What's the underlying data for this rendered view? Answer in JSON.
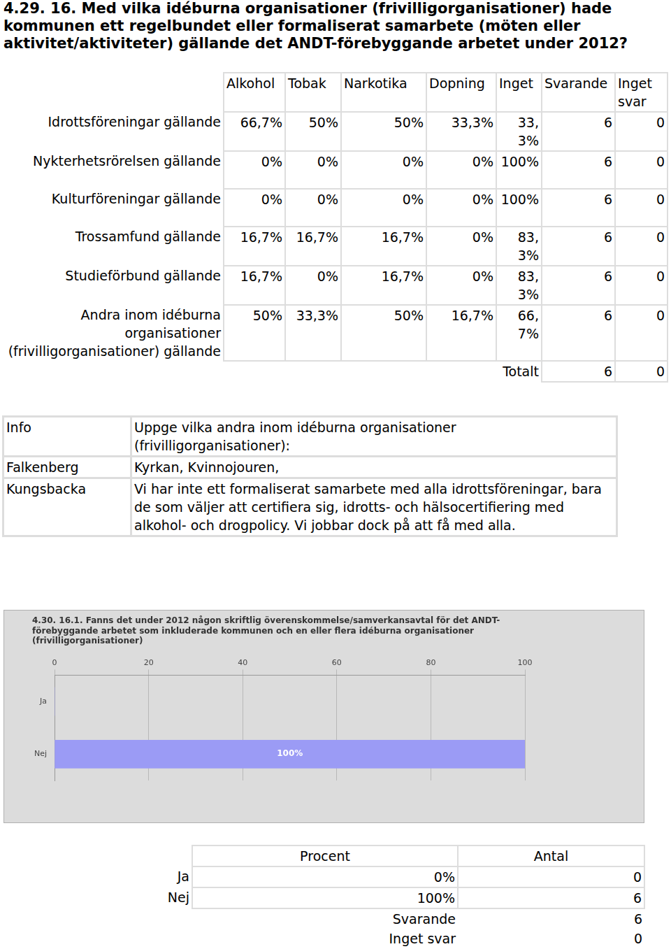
{
  "heading": "4.29. 16. Med vilka idéburna organisationer (frivilligorganisationer) hade kommunen ett regelbundet eller formaliserat samarbete (möten eller aktivitet/aktiviteter) gällande det ANDT-förebyggande arbetet under 2012?",
  "table1": {
    "columns": [
      "Alkohol",
      "Tobak",
      "Narkotika",
      "Dopning",
      "Inget",
      "Svarande",
      "Inget svar"
    ],
    "rows": [
      [
        "Idrottsföreningar gällande",
        "66,7%",
        "50%",
        "50%",
        "33,3%",
        "33,3%",
        "6",
        "0"
      ],
      [
        "Nykterhetsrörelsen gällande",
        "0%",
        "0%",
        "0%",
        "0%",
        "100%",
        "6",
        "0"
      ],
      [
        "Kulturföreningar gällande",
        "0%",
        "0%",
        "0%",
        "0%",
        "100%",
        "6",
        "0"
      ],
      [
        "Trossamfund gällande",
        "16,7%",
        "16,7%",
        "16,7%",
        "0%",
        "83,3%",
        "6",
        "0"
      ],
      [
        "Studieförbund gällande",
        "16,7%",
        "0%",
        "16,7%",
        "0%",
        "83,3%",
        "6",
        "0"
      ],
      [
        "Andra inom idéburna organisationer (frivilligorganisationer) gällande",
        "50%",
        "33,3%",
        "50%",
        "16,7%",
        "66,7%",
        "6",
        "0"
      ]
    ],
    "total": [
      "Totalt",
      "6",
      "0"
    ]
  },
  "info_table": {
    "header": [
      "Info",
      "Uppge vilka andra inom idéburna organisationer (frivilligorganisationer):"
    ],
    "rows": [
      [
        "Falkenberg",
        "Kyrkan, Kvinnojouren,"
      ],
      [
        "Kungsbacka",
        "Vi har inte ett formaliserat samarbete med alla idrottsföreningar, bara de som väljer att certifiera sig, idrotts- och hälsocertifiering med alkohol- och drogpolicy. Vi jobbar dock på att få med alla."
      ]
    ]
  },
  "chart_data": {
    "type": "bar",
    "orientation": "horizontal",
    "title": [
      "4.30. 16.1. Fanns det under 2012 någon skriftlig överenskommelse/samverkansavtal för det ANDT-",
      "förebyggande arbetet som inkluderade kommunen och en eller flera idéburna organisationer",
      "(frivilligorganisationer)"
    ],
    "categories": [
      "Ja",
      "Nej"
    ],
    "values": [
      0,
      100
    ],
    "value_labels": [
      null,
      "100%"
    ],
    "data_labels": true,
    "color": "#9b9bf5",
    "xlim": [
      0,
      100
    ],
    "xticks": [
      0,
      20,
      40,
      60,
      80,
      100
    ],
    "grid": true
  },
  "table2": {
    "header": [
      "Procent",
      "Antal"
    ],
    "rows": [
      [
        "Ja",
        "0%",
        "0"
      ],
      [
        "Nej",
        "100%",
        "6"
      ]
    ],
    "summary": [
      [
        "Svarande",
        "6"
      ],
      [
        "Inget svar",
        "0"
      ]
    ]
  }
}
